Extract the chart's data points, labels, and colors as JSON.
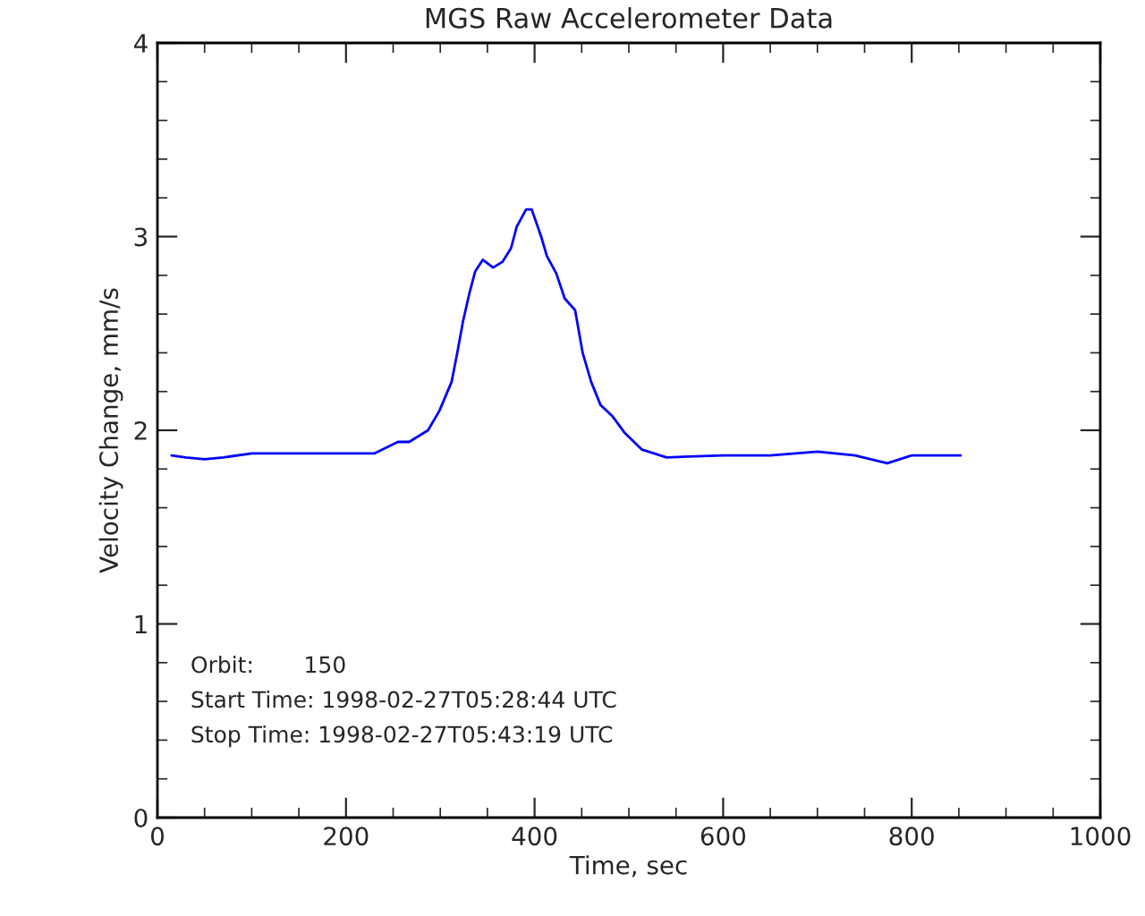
{
  "chart_data": {
    "type": "line",
    "title": "MGS Raw Accelerometer Data",
    "xlabel": "Time, sec",
    "ylabel": "Velocity Change, mm/s",
    "annotations": [
      "Orbit:       150",
      "Start Time: 1998-02-27T05:28:44 UTC",
      "Stop Time: 1998-02-27T05:43:19 UTC"
    ],
    "xlim": [
      0,
      1000
    ],
    "xticks": [
      0,
      200,
      400,
      600,
      800,
      1000
    ],
    "ylim": [
      0,
      4
    ],
    "yticks": [
      0,
      1,
      2,
      3,
      4
    ],
    "grid": false,
    "marker": "none",
    "line_style": "solid",
    "series": [
      {
        "color": "#0000ff",
        "x": [
          15,
          30,
          50,
          70,
          100,
          150,
          200,
          230,
          255,
          267,
          287,
          299,
          312,
          318,
          324,
          331,
          337,
          345,
          356,
          366,
          375,
          381,
          391,
          397,
          407,
          413,
          423,
          432,
          443,
          451,
          460,
          470,
          483,
          495,
          514,
          540,
          600,
          650,
          700,
          740,
          774,
          800,
          852
        ],
        "values": [
          1.87,
          1.86,
          1.85,
          1.86,
          1.88,
          1.88,
          1.88,
          1.88,
          1.94,
          1.94,
          2.0,
          2.1,
          2.25,
          2.4,
          2.56,
          2.71,
          2.82,
          2.88,
          2.84,
          2.87,
          2.94,
          3.05,
          3.14,
          3.14,
          3.0,
          2.9,
          2.81,
          2.68,
          2.62,
          2.4,
          2.25,
          2.13,
          2.07,
          1.99,
          1.9,
          1.86,
          1.87,
          1.87,
          1.89,
          1.87,
          1.83,
          1.87,
          1.87
        ]
      }
    ]
  }
}
